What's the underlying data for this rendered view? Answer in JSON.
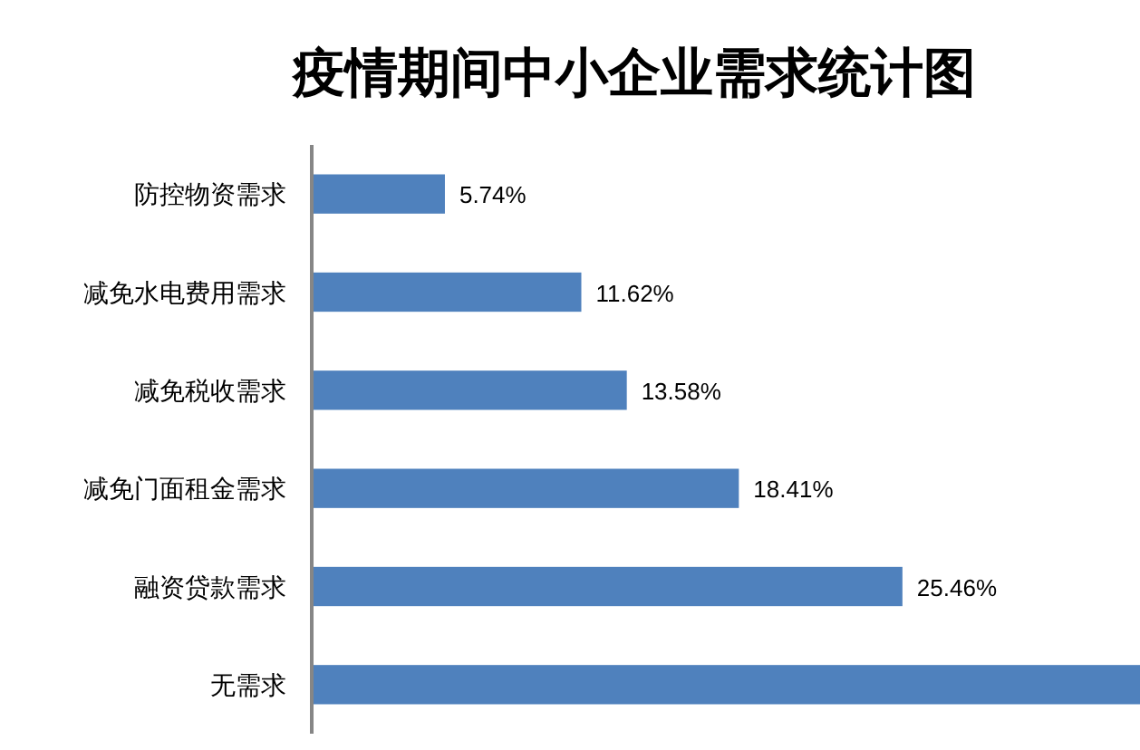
{
  "chart_data": {
    "type": "bar",
    "orientation": "horizontal",
    "title": "疫情期间中小企业需求统计图",
    "categories": [
      "防控物资需求",
      "减免水电费用需求",
      "减免税收需求",
      "减免门面租金需求",
      "融资贷款需求",
      "无需求"
    ],
    "values": [
      5.74,
      11.62,
      13.58,
      18.41,
      25.46,
      35.7
    ],
    "value_labels": [
      "5.74%",
      "11.62%",
      "13.58%",
      "18.41%",
      "25.46%",
      null
    ],
    "color": "#4f81bd"
  }
}
